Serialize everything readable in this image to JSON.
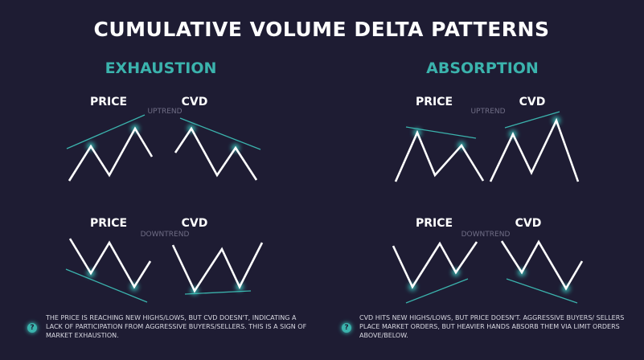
{
  "title": "CUMULATIVE VOLUME DELTA PATTERNS",
  "colors": {
    "background": "#1e1c33",
    "accent": "#3bb3ad",
    "line": "#ffffff",
    "trendline": "#3bb3ad"
  },
  "sections": [
    {
      "heading": "EXHAUSTION",
      "uptrend": {
        "label": "UPTREND",
        "price": "PRICE",
        "cvd": "CVD"
      },
      "downtrend": {
        "label": "DOWNTREND",
        "price": "PRICE",
        "cvd": "CVD"
      },
      "note": "THE PRICE IS REACHING NEW HIGHS/LOWS, BUT CVD DOESN'T, INDICATING A LACK OF PARTICIPATION FROM AGGRESSIVE BUYERS/SELLERS. THIS IS A SIGN OF MARKET EXHAUSTION.",
      "icon": "question-icon"
    },
    {
      "heading": "ABSORPTION",
      "uptrend": {
        "label": "UPTREND",
        "price": "PRICE",
        "cvd": "CVD"
      },
      "downtrend": {
        "label": "DOWNTREND",
        "price": "PRICE",
        "cvd": "CVD"
      },
      "note": "CVD HITS NEW HIGHS/LOWS, BUT PRICE DOESN'T. AGGRESSIVE BUYERS/ SELLERS PLACE MARKET ORDERS, BUT HEAVIER HANDS ABSORB THEM VIA LIMIT ORDERS ABOVE/BELOW.",
      "icon": "question-icon"
    }
  ],
  "icon_glyph": "?"
}
